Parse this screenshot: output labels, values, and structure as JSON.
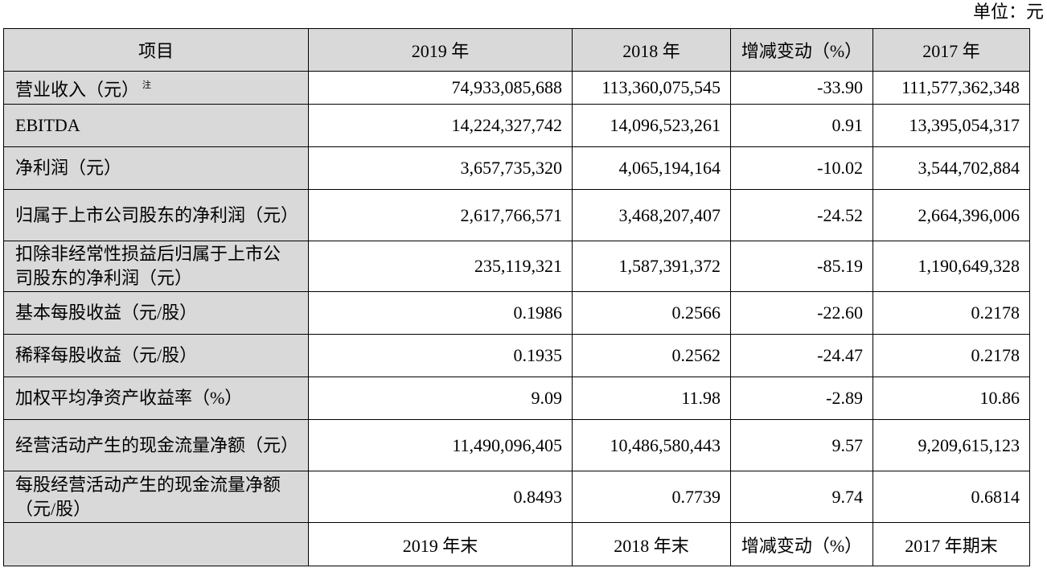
{
  "unit_label": "单位：元",
  "header": [
    "项目",
    "2019 年",
    "2018 年",
    "增减变动（%）",
    "2017 年"
  ],
  "rows": [
    {
      "label": "营业收入（元）",
      "note": "注",
      "v2019": "74,933,085,688",
      "v2018": "113,360,075,545",
      "change": "-33.90",
      "v2017": "111,577,362,348"
    },
    {
      "label": "EBITDA",
      "note": "",
      "v2019": "14,224,327,742",
      "v2018": "14,096,523,261",
      "change": "0.91",
      "v2017": "13,395,054,317"
    },
    {
      "label": "净利润（元）",
      "note": "",
      "v2019": "3,657,735,320",
      "v2018": "4,065,194,164",
      "change": "-10.02",
      "v2017": "3,544,702,884"
    },
    {
      "label": "归属于上市公司股东的净利润（元）",
      "note": "",
      "v2019": "2,617,766,571",
      "v2018": "3,468,207,407",
      "change": "-24.52",
      "v2017": "2,664,396,006"
    },
    {
      "label": "扣除非经常性损益后归属于上市公司股东的净利润（元）",
      "note": "",
      "v2019": "235,119,321",
      "v2018": "1,587,391,372",
      "change": "-85.19",
      "v2017": "1,190,649,328"
    },
    {
      "label": "基本每股收益（元/股）",
      "note": "",
      "v2019": "0.1986",
      "v2018": "0.2566",
      "change": "-22.60",
      "v2017": "0.2178"
    },
    {
      "label": "稀释每股收益（元/股）",
      "note": "",
      "v2019": "0.1935",
      "v2018": "0.2562",
      "change": "-24.47",
      "v2017": "0.2178"
    },
    {
      "label": "加权平均净资产收益率（%）",
      "note": "",
      "v2019": "9.09",
      "v2018": "11.98",
      "change": "-2.89",
      "v2017": "10.86"
    },
    {
      "label": "经营活动产生的现金流量净额（元）",
      "note": "",
      "v2019": "11,490,096,405",
      "v2018": "10,486,580,443",
      "change": "9.57",
      "v2017": "9,209,615,123"
    },
    {
      "label": "每股经营活动产生的现金流量净额（元/股）",
      "note": "",
      "v2019": "0.8493",
      "v2018": "0.7739",
      "change": "9.74",
      "v2017": "0.6814"
    }
  ],
  "footer": [
    "",
    "2019 年末",
    "2018 年末",
    "增减变动（%）",
    "2017 年期末"
  ]
}
